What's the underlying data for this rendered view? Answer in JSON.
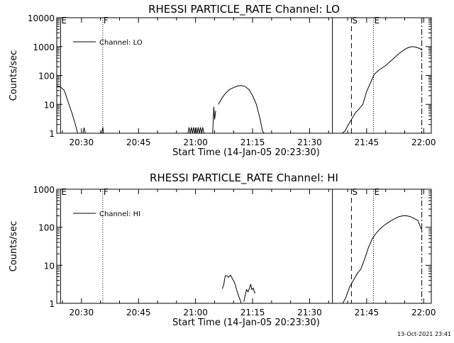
{
  "footer": {
    "timestamp": "13-Oct-2021 23:41"
  },
  "chart_data": [
    {
      "type": "line",
      "title": "RHESSI PARTICLE_RATE Channel: LO",
      "xlabel": "Start Time (14-Jan-05 20:23:30)",
      "ylabel": "Counts/sec",
      "yscale": "log",
      "ylim": [
        1,
        10000
      ],
      "y_ticks": [
        "1",
        "10",
        "100",
        "1000",
        "10000"
      ],
      "xlim_min": [
        23.5,
        122
      ],
      "x_ticks": [
        "20:30",
        "20:45",
        "21:00",
        "21:15",
        "21:30",
        "21:45",
        "22:00"
      ],
      "legend_label": "Channel: LO",
      "legend_position": "top-left",
      "markers": [
        {
          "label": "E",
          "t": 24.5,
          "style": "solid"
        },
        {
          "label": "F",
          "t": 35.6,
          "style": "dotted"
        },
        {
          "label": "",
          "t": 96.0,
          "style": "solid"
        },
        {
          "label": "S",
          "t": 101.0,
          "style": "dashed"
        },
        {
          "label": "E",
          "t": 106.8,
          "style": "dotted"
        },
        {
          "label": "",
          "t": 119.5,
          "style": "dashdot"
        }
      ],
      "series": [
        {
          "segments": [
            [
              [
                23.5,
                45
              ],
              [
                24.5,
                40
              ],
              [
                25.5,
                30
              ],
              [
                26.5,
                12
              ],
              [
                27.5,
                5
              ],
              [
                28.3,
                2.2
              ],
              [
                29,
                1
              ]
            ],
            [
              [
                30.4,
                1
              ],
              [
                30.7,
                1.55
              ],
              [
                31,
                1
              ]
            ],
            [
              [
                35.3,
                1
              ],
              [
                35.6,
                1.6
              ],
              [
                35.8,
                1
              ]
            ],
            [
              [
                58,
                1
              ],
              [
                58.3,
                1.6
              ],
              [
                58.6,
                1
              ],
              [
                58.9,
                1.6
              ],
              [
                59.2,
                1
              ],
              [
                59.5,
                1.6
              ],
              [
                59.8,
                1
              ],
              [
                60.1,
                1.6
              ],
              [
                60.4,
                1
              ],
              [
                60.7,
                1.6
              ],
              [
                61,
                1
              ],
              [
                61.3,
                1.6
              ],
              [
                61.6,
                1
              ],
              [
                61.9,
                1.6
              ],
              [
                62.2,
                1
              ]
            ],
            [
              [
                64.5,
                1
              ],
              [
                64.8,
                8.2
              ],
              [
                65,
                3
              ],
              [
                65.3,
                6
              ]
            ],
            [
              [
                66,
                10
              ],
              [
                67,
                17
              ],
              [
                68,
                25
              ],
              [
                69,
                33
              ],
              [
                70,
                38
              ],
              [
                71,
                43
              ],
              [
                72,
                45
              ],
              [
                73,
                42
              ],
              [
                74,
                33
              ],
              [
                75,
                20
              ],
              [
                76,
                10
              ],
              [
                77,
                3
              ],
              [
                77.6,
                1.2
              ],
              [
                78,
                1
              ]
            ],
            [
              [
                98.6,
                1
              ],
              [
                99.3,
                1.2
              ],
              [
                100,
                1.8
              ],
              [
                101,
                3
              ],
              [
                102,
                5
              ],
              [
                103,
                7
              ],
              [
                104,
                10
              ],
              [
                105,
                28
              ],
              [
                106,
                55
              ],
              [
                107,
                110
              ],
              [
                108,
                145
              ],
              [
                109,
                180
              ],
              [
                110,
                220
              ],
              [
                111,
                290
              ],
              [
                112,
                380
              ],
              [
                113,
                500
              ],
              [
                114,
                640
              ],
              [
                115,
                800
              ],
              [
                116,
                930
              ],
              [
                117,
                1000
              ],
              [
                118,
                960
              ],
              [
                119,
                850
              ],
              [
                119.6,
                750
              ]
            ]
          ]
        }
      ]
    },
    {
      "type": "line",
      "title": "RHESSI PARTICLE_RATE Channel: HI",
      "xlabel": "Start Time (14-Jan-05 20:23:30)",
      "ylabel": "Counts/sec",
      "yscale": "log",
      "ylim": [
        1,
        1000
      ],
      "y_ticks": [
        "1",
        "10",
        "100",
        "1000"
      ],
      "xlim_min": [
        23.5,
        122
      ],
      "x_ticks": [
        "20:30",
        "20:45",
        "21:00",
        "21:15",
        "21:30",
        "21:45",
        "22:00"
      ],
      "legend_label": "Channel: HI",
      "legend_position": "top-left",
      "markers": [
        {
          "label": "E",
          "t": 24.5,
          "style": "solid"
        },
        {
          "label": "F",
          "t": 35.6,
          "style": "dotted"
        },
        {
          "label": "",
          "t": 96.0,
          "style": "solid"
        },
        {
          "label": "S",
          "t": 101.0,
          "style": "dashed"
        },
        {
          "label": "E",
          "t": 106.8,
          "style": "dotted"
        },
        {
          "label": "",
          "t": 119.5,
          "style": "dashdot"
        }
      ],
      "series": [
        {
          "segments": [
            [
              [
                67,
                2.4
              ],
              [
                67.4,
                3
              ],
              [
                67.8,
                5.3
              ],
              [
                68.3,
                5.3
              ],
              [
                68.6,
                4.8
              ],
              [
                69.2,
                5.5
              ],
              [
                69.7,
                4.4
              ],
              [
                70.1,
                3.8
              ],
              [
                70.4,
                3.2
              ],
              [
                70.8,
                2.3
              ],
              [
                71.2,
                1.7
              ],
              [
                71.5,
                1.4
              ],
              [
                71.8,
                1.2
              ],
              [
                72,
                1
              ]
            ],
            [
              [
                72.7,
                1.1
              ],
              [
                73,
                1.5
              ],
              [
                73.4,
                2.3
              ],
              [
                73.8,
                2
              ],
              [
                74.2,
                2.5
              ],
              [
                74.5,
                3.2
              ],
              [
                74.8,
                2.3
              ],
              [
                75.2,
                2.5
              ],
              [
                75.5,
                1.9
              ],
              [
                75.8,
                1.9
              ]
            ],
            [
              [
                98.7,
                1
              ],
              [
                99.5,
                1.4
              ],
              [
                100.5,
                2.7
              ],
              [
                101.5,
                4
              ],
              [
                102.5,
                6
              ],
              [
                103.5,
                8
              ],
              [
                104.5,
                15
              ],
              [
                105.5,
                30
              ],
              [
                106.5,
                50
              ],
              [
                107.5,
                70
              ],
              [
                108.5,
                90
              ],
              [
                109.5,
                110
              ],
              [
                110.5,
                130
              ],
              [
                111.5,
                150
              ],
              [
                112.5,
                170
              ],
              [
                113.5,
                190
              ],
              [
                114.5,
                200
              ],
              [
                115.5,
                200
              ],
              [
                116.5,
                190
              ],
              [
                117.5,
                170
              ],
              [
                118.5,
                150
              ],
              [
                119,
                110
              ],
              [
                119.6,
                80
              ]
            ]
          ]
        }
      ]
    }
  ]
}
